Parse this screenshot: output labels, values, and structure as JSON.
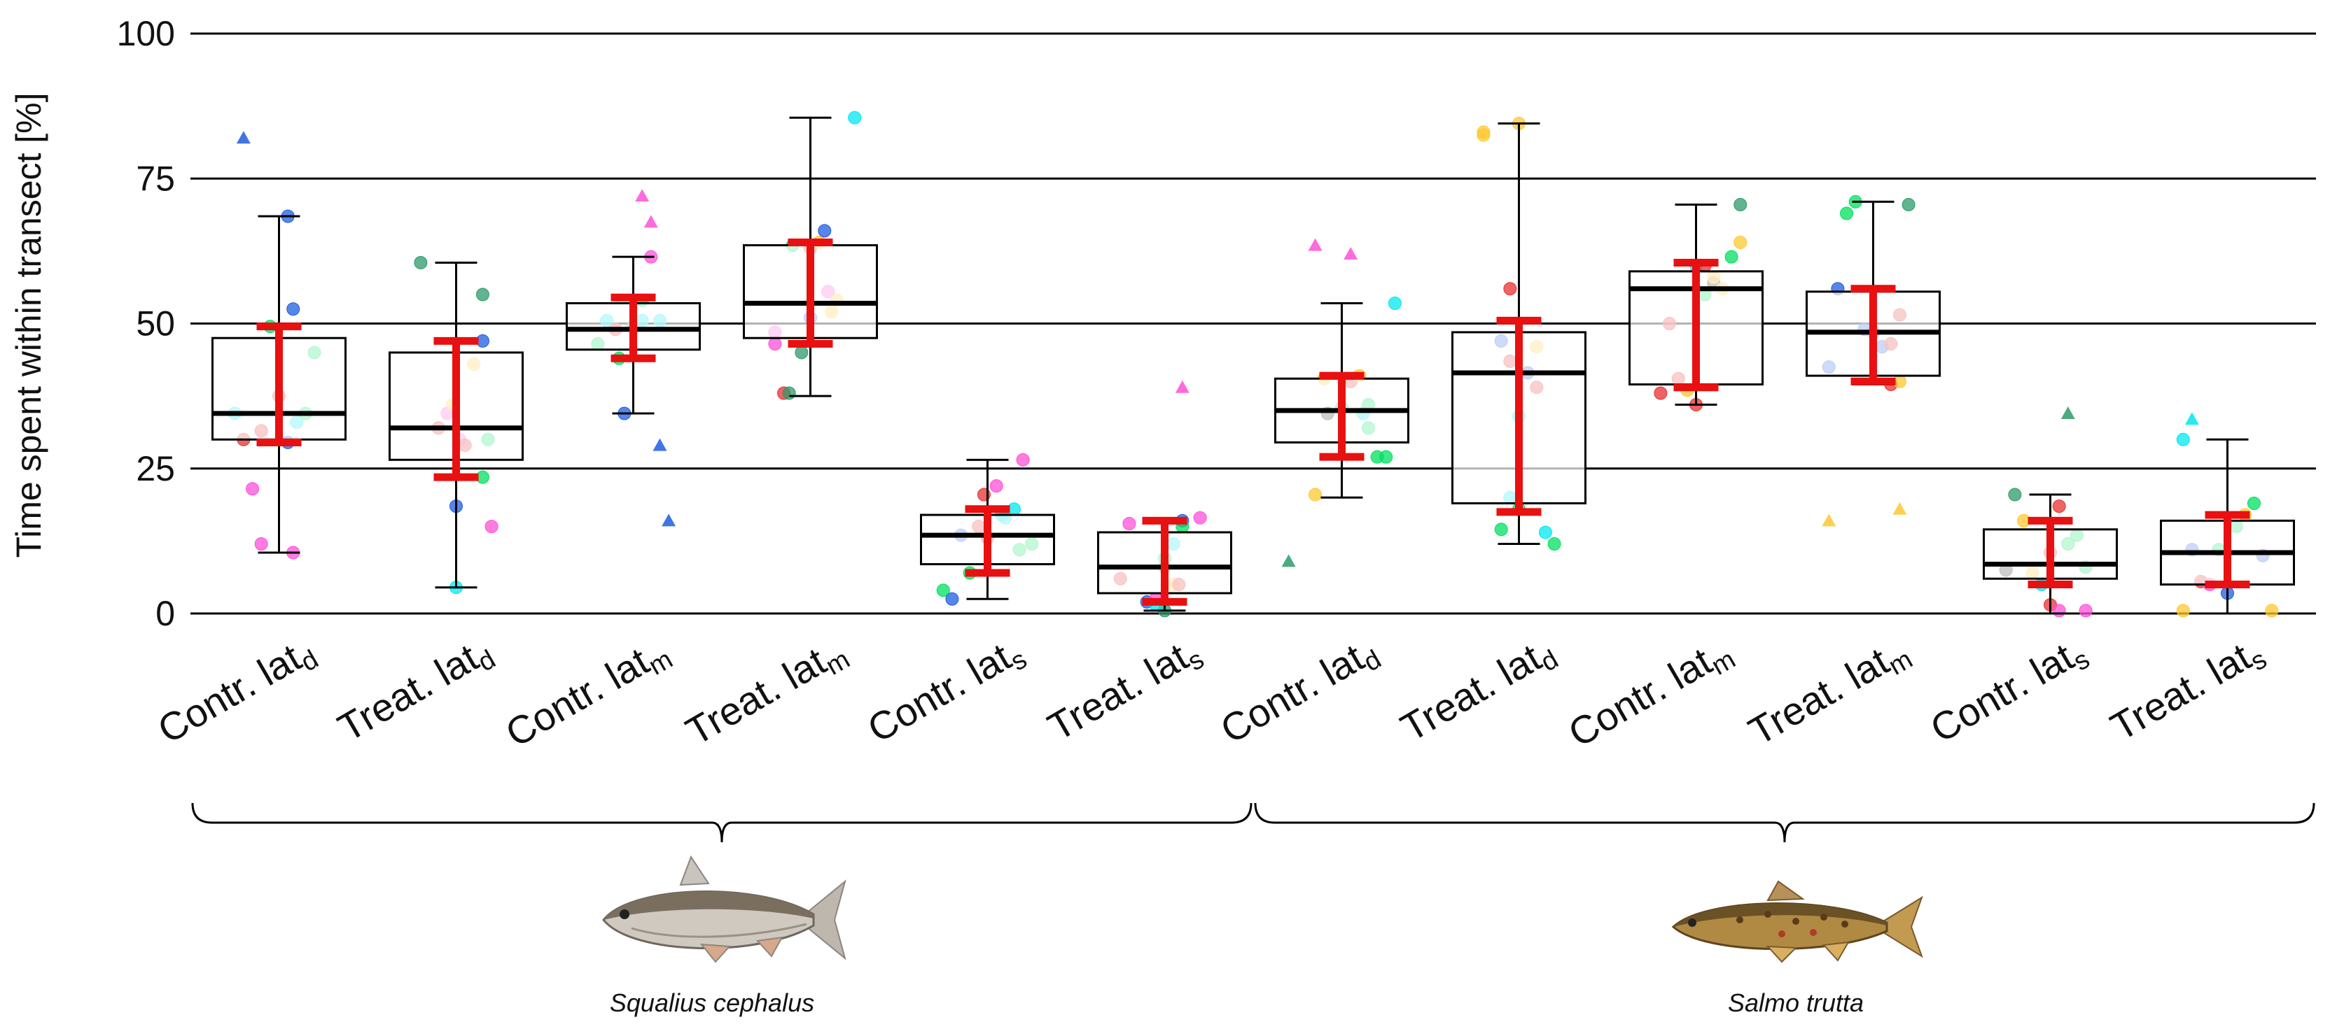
{
  "chart_data": {
    "type": "box",
    "ylabel": "Time spent within transect [%]",
    "ylim": [
      0,
      100
    ],
    "yticks": [
      0,
      25,
      50,
      75,
      100
    ],
    "grid": "horizontal",
    "groups": [
      {
        "species": "Squalius cephalus",
        "start": 0,
        "end": 5
      },
      {
        "species": "Salmo trutta",
        "start": 6,
        "end": 11
      }
    ],
    "categories": [
      {
        "main": "Contr.  lat",
        "sub": "d"
      },
      {
        "main": "Treat.  lat",
        "sub": "d"
      },
      {
        "main": "Contr.  lat",
        "sub": "m"
      },
      {
        "main": "Treat.  lat",
        "sub": "m"
      },
      {
        "main": "Contr.  lat",
        "sub": "s"
      },
      {
        "main": "Treat.  lat",
        "sub": "s"
      },
      {
        "main": "Contr.  lat",
        "sub": "d"
      },
      {
        "main": "Treat.  lat",
        "sub": "d"
      },
      {
        "main": "Contr.  lat",
        "sub": "m"
      },
      {
        "main": "Treat.  lat",
        "sub": "m"
      },
      {
        "main": "Contr.  lat",
        "sub": "s"
      },
      {
        "main": "Treat.  lat",
        "sub": "s"
      }
    ],
    "boxes": [
      {
        "q1": 30,
        "median": 34.5,
        "q3": 47.5,
        "wlo": 10.5,
        "whi": 68.5,
        "mean": 39.5,
        "ci_lo": 29.5,
        "ci_hi": 49.5
      },
      {
        "q1": 26.5,
        "median": 32,
        "q3": 45,
        "wlo": 4.5,
        "whi": 60.5,
        "mean": 35.5,
        "ci_lo": 23.5,
        "ci_hi": 47
      },
      {
        "q1": 45.5,
        "median": 49,
        "q3": 53.5,
        "wlo": 34.5,
        "whi": 61.5,
        "mean": 49,
        "ci_lo": 44,
        "ci_hi": 54.5
      },
      {
        "q1": 47.5,
        "median": 53.5,
        "q3": 63.5,
        "wlo": 37.5,
        "whi": 85.5,
        "mean": 55.5,
        "ci_lo": 46.5,
        "ci_hi": 64
      },
      {
        "q1": 8.5,
        "median": 13.5,
        "q3": 17,
        "wlo": 2.5,
        "whi": 26.5,
        "mean": 12.5,
        "ci_lo": 7,
        "ci_hi": 18
      },
      {
        "q1": 3.5,
        "median": 8,
        "q3": 14,
        "wlo": 0.5,
        "whi": 16,
        "mean": 9,
        "ci_lo": 2,
        "ci_hi": 16
      },
      {
        "q1": 29.5,
        "median": 35,
        "q3": 40.5,
        "wlo": 20,
        "whi": 53.5,
        "mean": 34,
        "ci_lo": 27,
        "ci_hi": 41
      },
      {
        "q1": 19,
        "median": 41.5,
        "q3": 48.5,
        "wlo": 12,
        "whi": 84.5,
        "mean": 34,
        "ci_lo": 17.5,
        "ci_hi": 50.5
      },
      {
        "q1": 39.5,
        "median": 56,
        "q3": 59,
        "wlo": 36,
        "whi": 70.5,
        "mean": 50,
        "ci_lo": 39,
        "ci_hi": 60.5
      },
      {
        "q1": 41,
        "median": 48.5,
        "q3": 55.5,
        "wlo": 39.5,
        "whi": 71,
        "mean": 48,
        "ci_lo": 40,
        "ci_hi": 56
      },
      {
        "q1": 6,
        "median": 8.5,
        "q3": 14.5,
        "wlo": 0,
        "whi": 20.5,
        "mean": 10.5,
        "ci_lo": 5,
        "ci_hi": 16
      },
      {
        "q1": 5,
        "median": 10.5,
        "q3": 16,
        "wlo": 0,
        "whi": 30,
        "mean": 11,
        "ci_lo": 5,
        "ci_hi": 17
      }
    ],
    "point_colors": [
      "#e83030",
      "#1f5de0",
      "#00e060",
      "#00e8f0",
      "#ff50d8",
      "#ffc830",
      "#2e9a6a",
      "#2a2a2a"
    ],
    "points": [
      [
        [
          -0.25,
          34.5,
          3,
          "c"
        ],
        [
          -0.2,
          30,
          0,
          "c"
        ],
        [
          -0.1,
          31.5,
          0,
          "c"
        ],
        [
          -0.15,
          21.5,
          4,
          "c"
        ],
        [
          -0.1,
          12,
          4,
          "c"
        ],
        [
          0.08,
          10.5,
          4,
          "c"
        ],
        [
          0.0,
          37.5,
          0,
          "c"
        ],
        [
          0.05,
          29.5,
          1,
          "c"
        ],
        [
          0.1,
          33,
          3,
          "c"
        ],
        [
          0.15,
          34.5,
          2,
          "c"
        ],
        [
          0.2,
          45,
          2,
          "c"
        ],
        [
          -0.05,
          49.5,
          2,
          "c"
        ],
        [
          0.05,
          68.5,
          1,
          "c"
        ],
        [
          0.08,
          52.5,
          1,
          "c"
        ],
        [
          -0.2,
          82,
          1,
          "t"
        ]
      ],
      [
        [
          -0.2,
          60.5,
          6,
          "c"
        ],
        [
          -0.05,
          34.5,
          4,
          "c"
        ],
        [
          -0.02,
          36,
          5,
          "c"
        ],
        [
          -0.1,
          32,
          0,
          "c"
        ],
        [
          0.02,
          30,
          4,
          "c"
        ],
        [
          0.05,
          29,
          0,
          "c"
        ],
        [
          0.1,
          43,
          5,
          "c"
        ],
        [
          0.15,
          47,
          1,
          "c"
        ],
        [
          0.15,
          55,
          6,
          "c"
        ],
        [
          0.18,
          30,
          2,
          "c"
        ],
        [
          0.15,
          23.5,
          2,
          "c"
        ],
        [
          0.2,
          15,
          4,
          "c"
        ],
        [
          0.0,
          18.5,
          1,
          "c"
        ],
        [
          0.0,
          4.5,
          3,
          "c"
        ]
      ],
      [
        [
          -0.15,
          50.5,
          3,
          "c"
        ],
        [
          -0.2,
          46.5,
          2,
          "c"
        ],
        [
          -0.1,
          49,
          0,
          "c"
        ],
        [
          -0.08,
          44,
          2,
          "c"
        ],
        [
          0.0,
          49.5,
          6,
          "c"
        ],
        [
          0.05,
          50.5,
          3,
          "c"
        ],
        [
          0.1,
          61.5,
          4,
          "c"
        ],
        [
          0.15,
          50.5,
          3,
          "c"
        ],
        [
          0.05,
          54,
          2,
          "c"
        ],
        [
          -0.05,
          34.5,
          1,
          "c"
        ],
        [
          0.05,
          72,
          4,
          "t"
        ],
        [
          0.1,
          67.5,
          4,
          "t"
        ],
        [
          0.15,
          29,
          1,
          "t"
        ],
        [
          0.2,
          16,
          1,
          "t"
        ]
      ],
      [
        [
          -0.2,
          48.5,
          4,
          "c"
        ],
        [
          -0.2,
          46.5,
          4,
          "c"
        ],
        [
          -0.1,
          63.5,
          2,
          "c"
        ],
        [
          0.0,
          63,
          0,
          "c"
        ],
        [
          0.05,
          64,
          5,
          "c"
        ],
        [
          0.08,
          66,
          1,
          "c"
        ],
        [
          0.1,
          55.5,
          4,
          "c"
        ],
        [
          0.12,
          52,
          5,
          "c"
        ],
        [
          0.15,
          54,
          5,
          "c"
        ],
        [
          0.0,
          51,
          1,
          "c"
        ],
        [
          -0.15,
          38,
          0,
          "c"
        ],
        [
          -0.05,
          45,
          6,
          "c"
        ],
        [
          0.25,
          85.5,
          3,
          "c"
        ],
        [
          -0.12,
          38,
          6,
          "c"
        ]
      ],
      [
        [
          -0.25,
          4,
          2,
          "c"
        ],
        [
          -0.2,
          2.5,
          1,
          "c"
        ],
        [
          -0.15,
          13.5,
          1,
          "c"
        ],
        [
          -0.1,
          7,
          2,
          "c"
        ],
        [
          -0.05,
          15,
          0,
          "c"
        ],
        [
          0.0,
          13,
          0,
          "c"
        ],
        [
          -0.02,
          20.5,
          0,
          "c"
        ],
        [
          0.05,
          22,
          4,
          "c"
        ],
        [
          0.08,
          17,
          3,
          "c"
        ],
        [
          0.1,
          16.5,
          3,
          "c"
        ],
        [
          0.15,
          18,
          3,
          "c"
        ],
        [
          0.2,
          26.5,
          4,
          "c"
        ],
        [
          0.25,
          12,
          2,
          "c"
        ],
        [
          0.18,
          11,
          2,
          "c"
        ]
      ],
      [
        [
          -0.2,
          15.5,
          4,
          "c"
        ],
        [
          -0.25,
          6,
          0,
          "c"
        ],
        [
          -0.1,
          2,
          1,
          "c"
        ],
        [
          -0.05,
          2.5,
          4,
          "c"
        ],
        [
          0.0,
          8,
          2,
          "c"
        ],
        [
          0.0,
          9.5,
          2,
          "c"
        ],
        [
          0.05,
          12,
          3,
          "c"
        ],
        [
          0.05,
          5,
          5,
          "c"
        ],
        [
          0.1,
          16,
          1,
          "c"
        ],
        [
          0.1,
          15,
          2,
          "c"
        ],
        [
          0.2,
          16.5,
          4,
          "c"
        ],
        [
          0.0,
          0.5,
          6,
          "c"
        ],
        [
          -0.05,
          1.5,
          3,
          "c"
        ],
        [
          0.08,
          5,
          0,
          "c"
        ],
        [
          0.1,
          39,
          4,
          "t"
        ]
      ],
      [
        [
          -0.15,
          20.5,
          5,
          "c"
        ],
        [
          -0.1,
          40.5,
          5,
          "c"
        ],
        [
          -0.08,
          34.5,
          7,
          "c"
        ],
        [
          0.0,
          35.5,
          2,
          "c"
        ],
        [
          0.05,
          40,
          0,
          "c"
        ],
        [
          0.1,
          41,
          5,
          "c"
        ],
        [
          0.12,
          34.5,
          3,
          "c"
        ],
        [
          0.15,
          36,
          2,
          "c"
        ],
        [
          0.15,
          32,
          2,
          "c"
        ],
        [
          0.2,
          27,
          2,
          "c"
        ],
        [
          0.25,
          27,
          2,
          "c"
        ],
        [
          0.3,
          53.5,
          3,
          "c"
        ],
        [
          -0.15,
          63.5,
          4,
          "t"
        ],
        [
          0.05,
          62,
          4,
          "t"
        ],
        [
          -0.3,
          9,
          6,
          "t"
        ]
      ],
      [
        [
          -0.2,
          83,
          5,
          "c"
        ],
        [
          -0.2,
          82.5,
          5,
          "c"
        ],
        [
          0.0,
          84.5,
          5,
          "c"
        ],
        [
          -0.05,
          56,
          0,
          "c"
        ],
        [
          -0.1,
          47,
          1,
          "c"
        ],
        [
          -0.05,
          43.5,
          0,
          "c"
        ],
        [
          0.0,
          34,
          3,
          "c"
        ],
        [
          0.05,
          41.5,
          1,
          "c"
        ],
        [
          0.1,
          39,
          0,
          "c"
        ],
        [
          0.1,
          46,
          5,
          "c"
        ],
        [
          -0.05,
          20,
          3,
          "c"
        ],
        [
          0.0,
          18,
          2,
          "c"
        ],
        [
          -0.1,
          14.5,
          2,
          "c"
        ],
        [
          0.15,
          14,
          3,
          "c"
        ],
        [
          0.2,
          12,
          2,
          "c"
        ]
      ],
      [
        [
          -0.2,
          38,
          0,
          "c"
        ],
        [
          -0.15,
          50,
          0,
          "c"
        ],
        [
          -0.1,
          40.5,
          0,
          "c"
        ],
        [
          -0.05,
          38.5,
          5,
          "c"
        ],
        [
          0.0,
          36,
          0,
          "c"
        ],
        [
          0.05,
          55,
          2,
          "c"
        ],
        [
          0.1,
          57,
          7,
          "c"
        ],
        [
          0.1,
          58,
          5,
          "c"
        ],
        [
          0.15,
          56,
          5,
          "c"
        ],
        [
          0.2,
          61.5,
          2,
          "c"
        ],
        [
          0.25,
          64,
          5,
          "c"
        ],
        [
          0.0,
          60,
          3,
          "c"
        ],
        [
          0.25,
          70.5,
          6,
          "c"
        ],
        [
          0.05,
          60,
          0,
          "c"
        ]
      ],
      [
        [
          -0.25,
          42.5,
          1,
          "c"
        ],
        [
          -0.2,
          56,
          1,
          "c"
        ],
        [
          -0.15,
          69,
          2,
          "c"
        ],
        [
          -0.1,
          71,
          2,
          "c"
        ],
        [
          -0.05,
          49,
          1,
          "c"
        ],
        [
          0.0,
          48.5,
          1,
          "c"
        ],
        [
          0.05,
          46,
          1,
          "c"
        ],
        [
          0.1,
          46.5,
          0,
          "c"
        ],
        [
          0.1,
          39.5,
          0,
          "c"
        ],
        [
          0.15,
          51.5,
          0,
          "c"
        ],
        [
          0.15,
          40,
          5,
          "c"
        ],
        [
          0.2,
          70.5,
          6,
          "c"
        ],
        [
          -0.25,
          16,
          5,
          "t"
        ],
        [
          0.15,
          18,
          5,
          "t"
        ]
      ],
      [
        [
          -0.2,
          20.5,
          6,
          "c"
        ],
        [
          -0.25,
          7.5,
          7,
          "c"
        ],
        [
          -0.15,
          16,
          5,
          "c"
        ],
        [
          -0.1,
          7,
          5,
          "c"
        ],
        [
          -0.05,
          5,
          3,
          "c"
        ],
        [
          0.0,
          10.5,
          0,
          "c"
        ],
        [
          0.05,
          18.5,
          0,
          "c"
        ],
        [
          0.1,
          12,
          2,
          "c"
        ],
        [
          0.15,
          13.5,
          2,
          "c"
        ],
        [
          0.2,
          8,
          2,
          "c"
        ],
        [
          0.0,
          1.5,
          0,
          "c"
        ],
        [
          0.05,
          0.5,
          4,
          "c"
        ],
        [
          0.2,
          0.5,
          4,
          "c"
        ],
        [
          0.1,
          34.5,
          6,
          "t"
        ]
      ],
      [
        [
          -0.25,
          30,
          3,
          "c"
        ],
        [
          -0.2,
          11,
          1,
          "c"
        ],
        [
          -0.15,
          5.5,
          0,
          "c"
        ],
        [
          -0.1,
          5,
          4,
          "c"
        ],
        [
          -0.05,
          11,
          2,
          "c"
        ],
        [
          0.0,
          3.5,
          1,
          "c"
        ],
        [
          0.05,
          15,
          2,
          "c"
        ],
        [
          0.1,
          17,
          5,
          "c"
        ],
        [
          0.15,
          19,
          2,
          "c"
        ],
        [
          0.2,
          10,
          1,
          "c"
        ],
        [
          -0.25,
          0.5,
          5,
          "c"
        ],
        [
          0.25,
          0.5,
          5,
          "c"
        ],
        [
          -0.2,
          33.5,
          3,
          "t"
        ]
      ]
    ]
  }
}
